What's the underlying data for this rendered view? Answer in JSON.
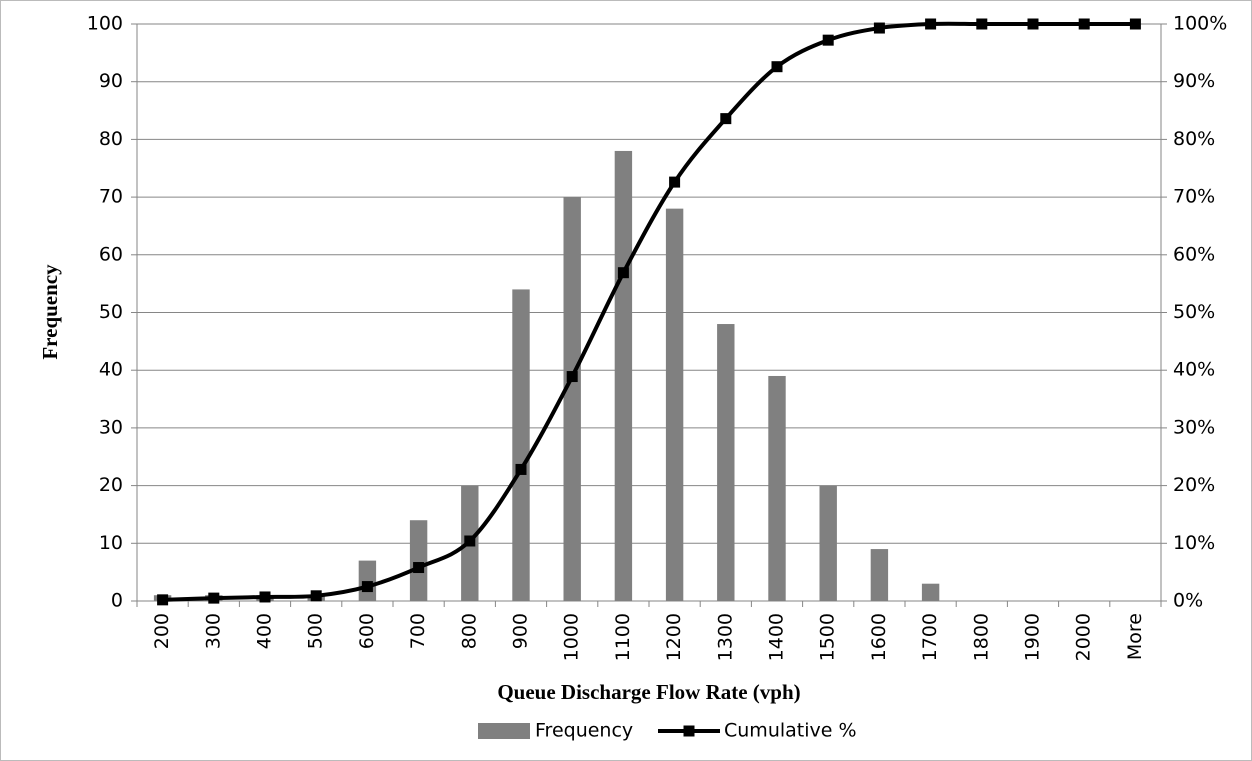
{
  "chart_data": {
    "type": "bar",
    "x_label": "Queue Discharge Flow Rate (vph)",
    "y_label": "Frequency",
    "categories": [
      "200",
      "300",
      "400",
      "500",
      "600",
      "700",
      "800",
      "900",
      "1000",
      "1100",
      "1200",
      "1300",
      "1400",
      "1500",
      "1600",
      "1700",
      "1800",
      "1900",
      "2000",
      "More"
    ],
    "series": [
      {
        "name": "Frequency",
        "type": "bar",
        "color": "#808080",
        "axis": "y",
        "values": [
          1,
          1,
          1,
          1,
          7,
          14,
          20,
          54,
          70,
          78,
          68,
          48,
          39,
          20,
          9,
          3,
          0,
          0,
          0,
          0
        ]
      },
      {
        "name": "Cumulative %",
        "type": "line",
        "color": "#000000",
        "axis": "y2",
        "values": [
          0.2,
          0.5,
          0.7,
          0.9,
          2.5,
          5.8,
          10.4,
          22.8,
          38.9,
          56.9,
          72.6,
          83.6,
          92.6,
          97.2,
          99.3,
          100,
          100,
          100,
          100,
          100
        ]
      }
    ],
    "ylim": [
      0,
      100
    ],
    "yticks": [
      0,
      10,
      20,
      30,
      40,
      50,
      60,
      70,
      80,
      90,
      100
    ],
    "y2lim": [
      0,
      100
    ],
    "y2ticks": [
      {
        "value": 0,
        "label": "0%"
      },
      {
        "value": 10,
        "label": "10%"
      },
      {
        "value": 20,
        "label": "20%"
      },
      {
        "value": 30,
        "label": "30%"
      },
      {
        "value": 40,
        "label": "40%"
      },
      {
        "value": 50,
        "label": "50%"
      },
      {
        "value": 60,
        "label": "60%"
      },
      {
        "value": 70,
        "label": "70%"
      },
      {
        "value": 80,
        "label": "80%"
      },
      {
        "value": 90,
        "label": "90%"
      },
      {
        "value": 100,
        "label": "100%"
      }
    ],
    "grid": true,
    "legend": "bottom"
  }
}
